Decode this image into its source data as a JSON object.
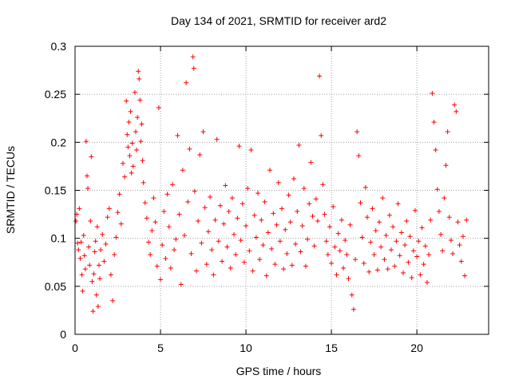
{
  "chart_data": {
    "type": "scatter",
    "title": "Day 134 of 2021, SRMTID for receiver ard2",
    "xlabel": "GPS time / hours",
    "ylabel": "SRMTID / TECUs",
    "xlim": [
      0,
      24.2
    ],
    "ylim": [
      0,
      0.3
    ],
    "grid": true,
    "marker": "+",
    "x_ticks": [
      0,
      5,
      10,
      15,
      20
    ],
    "x_tick_labels": [
      "0",
      "5",
      "10",
      "15",
      "20"
    ],
    "y_ticks": [
      0,
      0.05,
      0.1,
      0.15,
      0.2,
      0.25,
      0.3
    ],
    "y_tick_labels": [
      "0",
      "0.05",
      "0.1",
      "0.15",
      "0.2",
      "0.25",
      "0.3"
    ],
    "series": [
      {
        "name": "SRMTID",
        "color": "#ff0000",
        "points": [
          [
            0.05,
            0.118
          ],
          [
            0.1,
            0.125
          ],
          [
            0.15,
            0.095
          ],
          [
            0.2,
            0.088
          ],
          [
            0.25,
            0.131
          ],
          [
            0.3,
            0.079
          ],
          [
            0.35,
            0.096
          ],
          [
            0.4,
            0.062
          ],
          [
            0.45,
            0.045
          ],
          [
            0.5,
            0.103
          ],
          [
            0.55,
            0.082
          ],
          [
            0.6,
            0.068
          ],
          [
            0.65,
            0.201
          ],
          [
            0.7,
            0.165
          ],
          [
            0.75,
            0.152
          ],
          [
            0.8,
            0.091
          ],
          [
            0.85,
            0.072
          ],
          [
            0.9,
            0.118
          ],
          [
            0.95,
            0.185
          ],
          [
            1.0,
            0.055
          ],
          [
            1.05,
            0.024
          ],
          [
            1.1,
            0.063
          ],
          [
            1.15,
            0.086
          ],
          [
            1.2,
            0.097
          ],
          [
            1.25,
            0.041
          ],
          [
            1.3,
            0.112
          ],
          [
            1.35,
            0.029
          ],
          [
            1.4,
            0.072
          ],
          [
            1.45,
            0.058
          ],
          [
            1.5,
            0.088
          ],
          [
            1.6,
            0.104
          ],
          [
            1.7,
            0.076
          ],
          [
            1.8,
            0.094
          ],
          [
            1.9,
            0.122
          ],
          [
            2.0,
            0.131
          ],
          [
            2.1,
            0.062
          ],
          [
            2.2,
            0.035
          ],
          [
            2.3,
            0.083
          ],
          [
            2.4,
            0.101
          ],
          [
            2.5,
            0.127
          ],
          [
            2.6,
            0.146
          ],
          [
            2.7,
            0.115
          ],
          [
            2.8,
            0.178
          ],
          [
            2.9,
            0.164
          ],
          [
            3.0,
            0.243
          ],
          [
            3.05,
            0.208
          ],
          [
            3.1,
            0.195
          ],
          [
            3.15,
            0.221
          ],
          [
            3.2,
            0.186
          ],
          [
            3.25,
            0.232
          ],
          [
            3.3,
            0.168
          ],
          [
            3.35,
            0.199
          ],
          [
            3.4,
            0.175
          ],
          [
            3.5,
            0.252
          ],
          [
            3.55,
            0.211
          ],
          [
            3.6,
            0.192
          ],
          [
            3.65,
            0.226
          ],
          [
            3.7,
            0.274
          ],
          [
            3.75,
            0.266
          ],
          [
            3.8,
            0.244
          ],
          [
            3.85,
            0.201
          ],
          [
            3.9,
            0.219
          ],
          [
            3.95,
            0.181
          ],
          [
            4.0,
            0.158
          ],
          [
            4.1,
            0.137
          ],
          [
            4.2,
            0.121
          ],
          [
            4.3,
            0.096
          ],
          [
            4.4,
            0.083
          ],
          [
            4.5,
            0.108
          ],
          [
            4.6,
            0.142
          ],
          [
            4.7,
            0.117
          ],
          [
            4.8,
            0.071
          ],
          [
            4.9,
            0.236
          ],
          [
            5.0,
            0.057
          ],
          [
            5.1,
            0.093
          ],
          [
            5.2,
            0.128
          ],
          [
            5.3,
            0.079
          ],
          [
            5.4,
            0.146
          ],
          [
            5.5,
            0.112
          ],
          [
            5.6,
            0.069
          ],
          [
            5.7,
            0.156
          ],
          [
            5.8,
            0.088
          ],
          [
            5.9,
            0.099
          ],
          [
            6.0,
            0.207
          ],
          [
            6.1,
            0.125
          ],
          [
            6.2,
            0.052
          ],
          [
            6.3,
            0.171
          ],
          [
            6.4,
            0.103
          ],
          [
            6.5,
            0.262
          ],
          [
            6.6,
            0.138
          ],
          [
            6.7,
            0.193
          ],
          [
            6.8,
            0.084
          ],
          [
            6.9,
            0.289
          ],
          [
            6.95,
            0.277
          ],
          [
            7.0,
            0.149
          ],
          [
            7.1,
            0.066
          ],
          [
            7.2,
            0.118
          ],
          [
            7.3,
            0.187
          ],
          [
            7.4,
            0.095
          ],
          [
            7.5,
            0.211
          ],
          [
            7.6,
            0.132
          ],
          [
            7.7,
            0.073
          ],
          [
            7.8,
            0.107
          ],
          [
            7.9,
            0.143
          ],
          [
            8.0,
            0.088
          ],
          [
            8.1,
            0.062
          ],
          [
            8.2,
            0.119
          ],
          [
            8.3,
            0.203
          ],
          [
            8.4,
            0.097
          ],
          [
            8.5,
            0.134
          ],
          [
            8.6,
            0.076
          ],
          [
            8.7,
            0.115
          ],
          [
            8.8,
            0.155
          ],
          [
            8.9,
            0.091
          ],
          [
            9.0,
            0.128
          ],
          [
            9.1,
            0.069
          ],
          [
            9.2,
            0.142
          ],
          [
            9.3,
            0.104
          ],
          [
            9.4,
            0.083
          ],
          [
            9.5,
            0.121
          ],
          [
            9.6,
            0.196
          ],
          [
            9.7,
            0.098
          ],
          [
            9.8,
            0.136
          ],
          [
            9.9,
            0.075
          ],
          [
            10.0,
            0.113
          ],
          [
            10.1,
            0.152
          ],
          [
            10.2,
            0.087
          ],
          [
            10.3,
            0.192
          ],
          [
            10.4,
            0.066
          ],
          [
            10.5,
            0.124
          ],
          [
            10.6,
            0.101
          ],
          [
            10.7,
            0.147
          ],
          [
            10.8,
            0.078
          ],
          [
            10.9,
            0.119
          ],
          [
            11.0,
            0.093
          ],
          [
            11.1,
            0.138
          ],
          [
            11.2,
            0.061
          ],
          [
            11.3,
            0.106
          ],
          [
            11.4,
            0.171
          ],
          [
            11.5,
            0.089
          ],
          [
            11.6,
            0.126
          ],
          [
            11.7,
            0.073
          ],
          [
            11.8,
            0.114
          ],
          [
            11.9,
            0.158
          ],
          [
            12.0,
            0.097
          ],
          [
            12.1,
            0.131
          ],
          [
            12.2,
            0.068
          ],
          [
            12.3,
            0.109
          ],
          [
            12.4,
            0.084
          ],
          [
            12.5,
            0.145
          ],
          [
            12.6,
            0.117
          ],
          [
            12.7,
            0.072
          ],
          [
            12.8,
            0.162
          ],
          [
            12.9,
            0.094
          ],
          [
            13.0,
            0.128
          ],
          [
            13.1,
            0.197
          ],
          [
            13.2,
            0.086
          ],
          [
            13.3,
            0.113
          ],
          [
            13.4,
            0.152
          ],
          [
            13.5,
            0.071
          ],
          [
            13.6,
            0.099
          ],
          [
            13.7,
            0.136
          ],
          [
            13.8,
            0.179
          ],
          [
            13.9,
            0.123
          ],
          [
            14.0,
            0.092
          ],
          [
            14.1,
            0.141
          ],
          [
            14.2,
            0.118
          ],
          [
            14.3,
            0.269
          ],
          [
            14.4,
            0.207
          ],
          [
            14.5,
            0.156
          ],
          [
            14.6,
            0.125
          ],
          [
            14.7,
            0.097
          ],
          [
            14.8,
            0.083
          ],
          [
            14.9,
            0.112
          ],
          [
            15.0,
            0.074
          ],
          [
            15.1,
            0.133
          ],
          [
            15.2,
            0.091
          ],
          [
            15.3,
            0.062
          ],
          [
            15.4,
            0.105
          ],
          [
            15.5,
            0.087
          ],
          [
            15.6,
            0.119
          ],
          [
            15.7,
            0.069
          ],
          [
            15.8,
            0.098
          ],
          [
            15.9,
            0.083
          ],
          [
            16.0,
            0.058
          ],
          [
            16.1,
            0.114
          ],
          [
            16.2,
            0.041
          ],
          [
            16.3,
            0.026
          ],
          [
            16.4,
            0.078
          ],
          [
            16.5,
            0.211
          ],
          [
            16.6,
            0.186
          ],
          [
            16.7,
            0.137
          ],
          [
            16.8,
            0.101
          ],
          [
            16.9,
            0.074
          ],
          [
            17.0,
            0.153
          ],
          [
            17.1,
            0.122
          ],
          [
            17.2,
            0.065
          ],
          [
            17.3,
            0.096
          ],
          [
            17.4,
            0.131
          ],
          [
            17.5,
            0.083
          ],
          [
            17.6,
            0.108
          ],
          [
            17.7,
            0.067
          ],
          [
            17.8,
            0.117
          ],
          [
            17.9,
            0.091
          ],
          [
            18.0,
            0.142
          ],
          [
            18.1,
            0.078
          ],
          [
            18.2,
            0.103
          ],
          [
            18.3,
            0.068
          ],
          [
            18.4,
            0.124
          ],
          [
            18.5,
            0.088
          ],
          [
            18.6,
            0.112
          ],
          [
            18.7,
            0.071
          ],
          [
            18.8,
            0.097
          ],
          [
            18.9,
            0.136
          ],
          [
            19.0,
            0.082
          ],
          [
            19.1,
            0.106
          ],
          [
            19.2,
            0.064
          ],
          [
            19.3,
            0.093
          ],
          [
            19.4,
            0.118
          ],
          [
            19.5,
            0.075
          ],
          [
            19.6,
            0.102
          ],
          [
            19.7,
            0.059
          ],
          [
            19.8,
            0.087
          ],
          [
            19.9,
            0.129
          ],
          [
            20.0,
            0.081
          ],
          [
            20.1,
            0.097
          ],
          [
            20.2,
            0.062
          ],
          [
            20.3,
            0.111
          ],
          [
            20.4,
            0.073
          ],
          [
            20.5,
            0.092
          ],
          [
            20.6,
            0.054
          ],
          [
            20.7,
            0.083
          ],
          [
            20.8,
            0.119
          ],
          [
            20.9,
            0.251
          ],
          [
            21.0,
            0.221
          ],
          [
            21.1,
            0.192
          ],
          [
            21.2,
            0.151
          ],
          [
            21.3,
            0.128
          ],
          [
            21.4,
            0.104
          ],
          [
            21.5,
            0.087
          ],
          [
            21.6,
            0.142
          ],
          [
            21.7,
            0.176
          ],
          [
            21.8,
            0.211
          ],
          [
            21.9,
            0.122
          ],
          [
            22.0,
            0.098
          ],
          [
            22.1,
            0.084
          ],
          [
            22.2,
            0.239
          ],
          [
            22.3,
            0.232
          ],
          [
            22.4,
            0.117
          ],
          [
            22.5,
            0.093
          ],
          [
            22.6,
            0.076
          ],
          [
            22.7,
            0.102
          ],
          [
            22.8,
            0.061
          ],
          [
            22.9,
            0.119
          ]
        ]
      }
    ]
  }
}
